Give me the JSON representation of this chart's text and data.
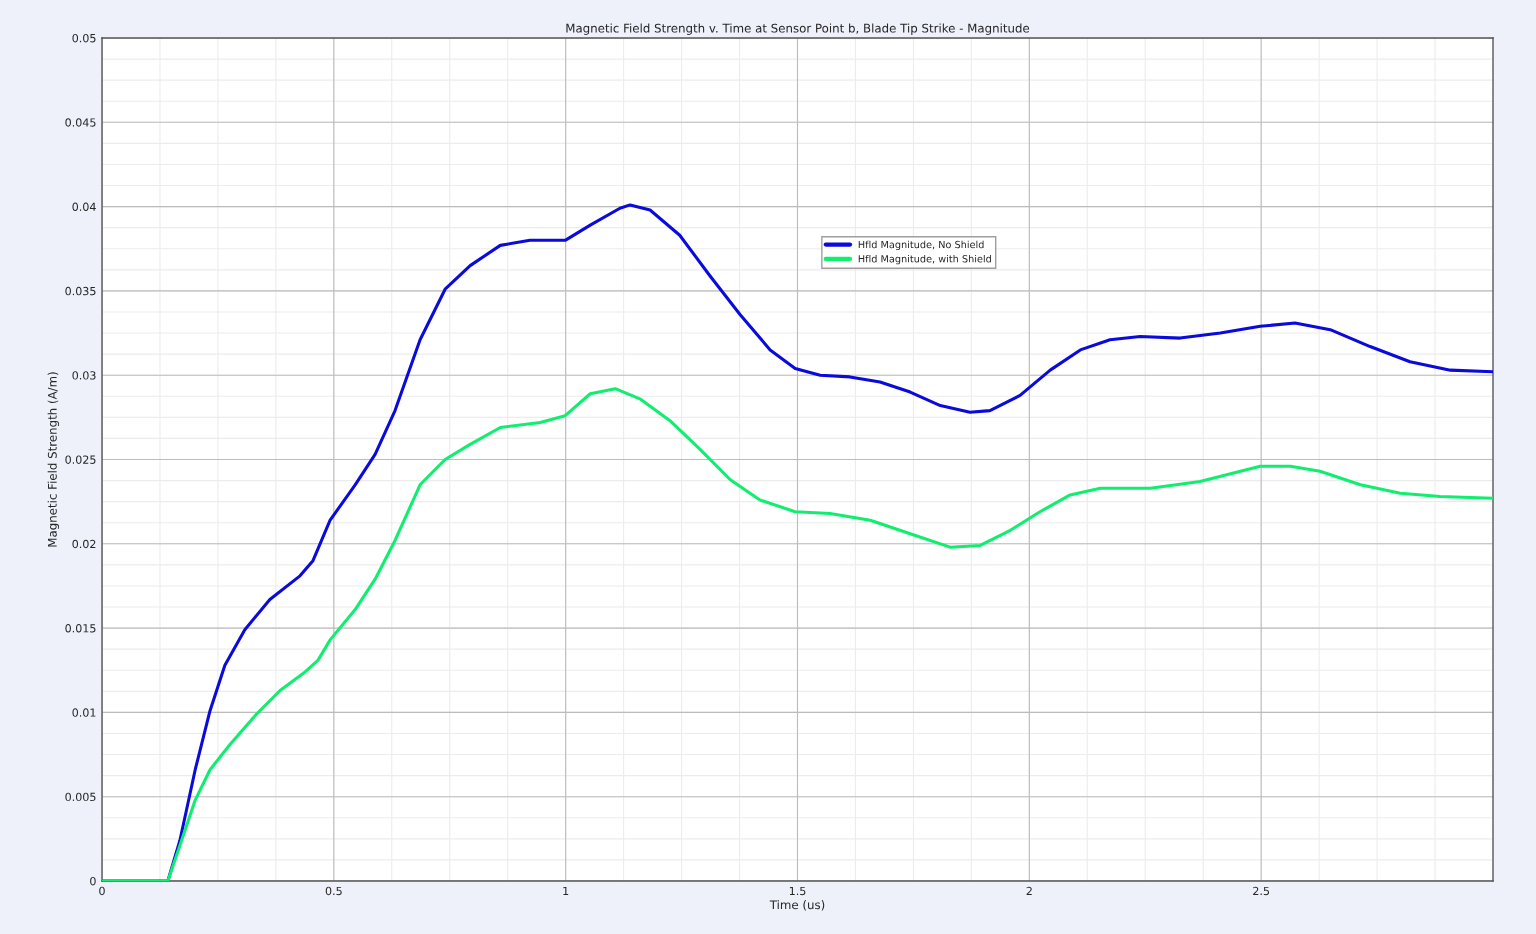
{
  "chart_data": {
    "type": "line",
    "title": "Magnetic Field Strength v. Time at Sensor Point b, Blade Tip Strike - Magnitude",
    "xlabel": "Time (us)",
    "ylabel": "Magnetic Field Strength (A/m)",
    "xlim": [
      0,
      3
    ],
    "xticks": [
      0,
      0.5,
      1,
      1.5,
      2,
      2.5
    ],
    "ylim": [
      0,
      0.05
    ],
    "yticks": [
      0,
      0.005,
      0.01,
      0.015,
      0.02,
      0.025,
      0.03,
      0.035,
      0.04,
      0.045,
      0.05
    ],
    "grid": true,
    "legend": "top",
    "marker": "none",
    "line_style": "solid",
    "series": [
      {
        "name": "Hfld Magnitude, No Shield",
        "color": "#0a0adc",
        "x": [
          0,
          0.142,
          0.168,
          0.201,
          0.233,
          0.265,
          0.308,
          0.362,
          0.427,
          0.455,
          0.492,
          0.546,
          0.589,
          0.632,
          0.686,
          0.74,
          0.794,
          0.859,
          0.923,
          0.999,
          1.053,
          1.117,
          1.139,
          1.182,
          1.246,
          1.311,
          1.376,
          1.441,
          1.495,
          1.549,
          1.613,
          1.678,
          1.743,
          1.808,
          1.872,
          1.915,
          1.98,
          2.045,
          2.11,
          2.174,
          2.239,
          2.325,
          2.412,
          2.498,
          2.573,
          2.649,
          2.735,
          2.821,
          2.908,
          3.0
        ],
        "values": [
          0,
          0,
          0.0024,
          0.0066,
          0.0101,
          0.0128,
          0.0149,
          0.0167,
          0.0181,
          0.019,
          0.0214,
          0.0235,
          0.0253,
          0.0279,
          0.0321,
          0.0351,
          0.0365,
          0.0377,
          0.038,
          0.038,
          0.0389,
          0.0399,
          0.0401,
          0.0398,
          0.0383,
          0.0359,
          0.0336,
          0.0315,
          0.0304,
          0.03,
          0.0299,
          0.0296,
          0.029,
          0.0282,
          0.0278,
          0.0279,
          0.0288,
          0.0303,
          0.0315,
          0.0321,
          0.0323,
          0.0322,
          0.0325,
          0.0329,
          0.0331,
          0.0327,
          0.0317,
          0.0308,
          0.0303,
          0.0302
        ]
      },
      {
        "name": "Hfld Magnitude, with Shield",
        "color": "#10ee70",
        "x": [
          0,
          0.142,
          0.168,
          0.201,
          0.233,
          0.276,
          0.33,
          0.384,
          0.438,
          0.466,
          0.492,
          0.546,
          0.589,
          0.632,
          0.686,
          0.74,
          0.794,
          0.859,
          0.945,
          0.999,
          1.053,
          1.107,
          1.16,
          1.225,
          1.29,
          1.355,
          1.419,
          1.495,
          1.57,
          1.657,
          1.743,
          1.829,
          1.894,
          1.959,
          2.023,
          2.088,
          2.153,
          2.261,
          2.368,
          2.498,
          2.563,
          2.627,
          2.714,
          2.8,
          2.886,
          3.0
        ],
        "values": [
          0,
          0,
          0.0021,
          0.0048,
          0.0066,
          0.0081,
          0.0098,
          0.0113,
          0.0124,
          0.0131,
          0.0143,
          0.0161,
          0.0179,
          0.0202,
          0.0235,
          0.025,
          0.0259,
          0.0269,
          0.0272,
          0.0276,
          0.0289,
          0.0292,
          0.0286,
          0.0273,
          0.0256,
          0.0238,
          0.0226,
          0.0219,
          0.0218,
          0.0214,
          0.0206,
          0.0198,
          0.0199,
          0.0208,
          0.0219,
          0.0229,
          0.0233,
          0.0233,
          0.0237,
          0.0246,
          0.0246,
          0.0243,
          0.0235,
          0.023,
          0.0228,
          0.0227
        ]
      }
    ]
  }
}
